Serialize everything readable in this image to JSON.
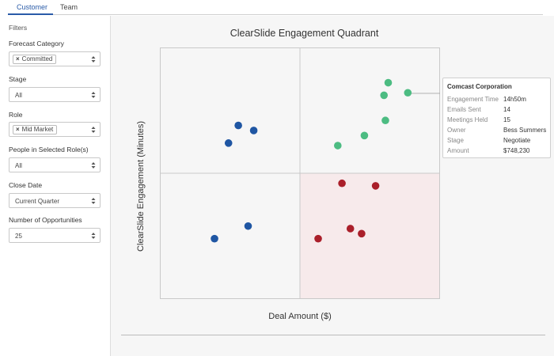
{
  "tabs": [
    {
      "label": "Customer",
      "active": true
    },
    {
      "label": "Team",
      "active": false
    }
  ],
  "filters": {
    "title": "Filters",
    "forecast_category": {
      "label": "Forecast Category",
      "tag": "Committed"
    },
    "stage": {
      "label": "Stage",
      "value": "All"
    },
    "role": {
      "label": "Role",
      "tag": "Mid Market"
    },
    "people": {
      "label": "People in Selected Role(s)",
      "value": "All"
    },
    "close_date": {
      "label": "Close Date",
      "value": "Current Quarter"
    },
    "num_opps": {
      "label": "Number of Opportunities",
      "value": "25"
    }
  },
  "chart_data": {
    "type": "scatter",
    "title": "ClearSlide Engagement Quadrant",
    "xlabel": "Deal Amount ($)",
    "ylabel": "ClearSlide Engagement (Minutes)",
    "grid": false,
    "quadrant_highlight": "bottom-right",
    "colors": {
      "blue": "#1f56a3",
      "green": "#4cbc82",
      "red": "#aa1f2a",
      "highlight": "#f7eaeb"
    },
    "series": [
      {
        "color": "blue",
        "points": [
          [
            0.56,
            0.69
          ],
          [
            0.67,
            0.67
          ],
          [
            0.49,
            0.62
          ],
          [
            0.63,
            0.29
          ],
          [
            0.39,
            0.24
          ]
        ]
      },
      {
        "color": "green",
        "points": [
          [
            1.63,
            0.86
          ],
          [
            1.6,
            0.81
          ],
          [
            1.77,
            0.82
          ],
          [
            1.61,
            0.71
          ],
          [
            1.46,
            0.65
          ],
          [
            1.27,
            0.61
          ]
        ]
      },
      {
        "color": "red",
        "points": [
          [
            1.3,
            0.46
          ],
          [
            1.54,
            0.45
          ],
          [
            1.36,
            0.28
          ],
          [
            1.44,
            0.26
          ],
          [
            1.13,
            0.24
          ]
        ]
      }
    ]
  },
  "tooltip": {
    "title": "Comcast Corporation",
    "rows": [
      {
        "key": "Engagement Time",
        "value": "14h50m"
      },
      {
        "key": "Emails Sent",
        "value": "14"
      },
      {
        "key": "Meetings Held",
        "value": "15"
      },
      {
        "key": "Owner",
        "value": "Bess Summers"
      },
      {
        "key": "Stage",
        "value": "Negotiate"
      },
      {
        "key": "Amount",
        "value": "$748,230"
      }
    ]
  }
}
